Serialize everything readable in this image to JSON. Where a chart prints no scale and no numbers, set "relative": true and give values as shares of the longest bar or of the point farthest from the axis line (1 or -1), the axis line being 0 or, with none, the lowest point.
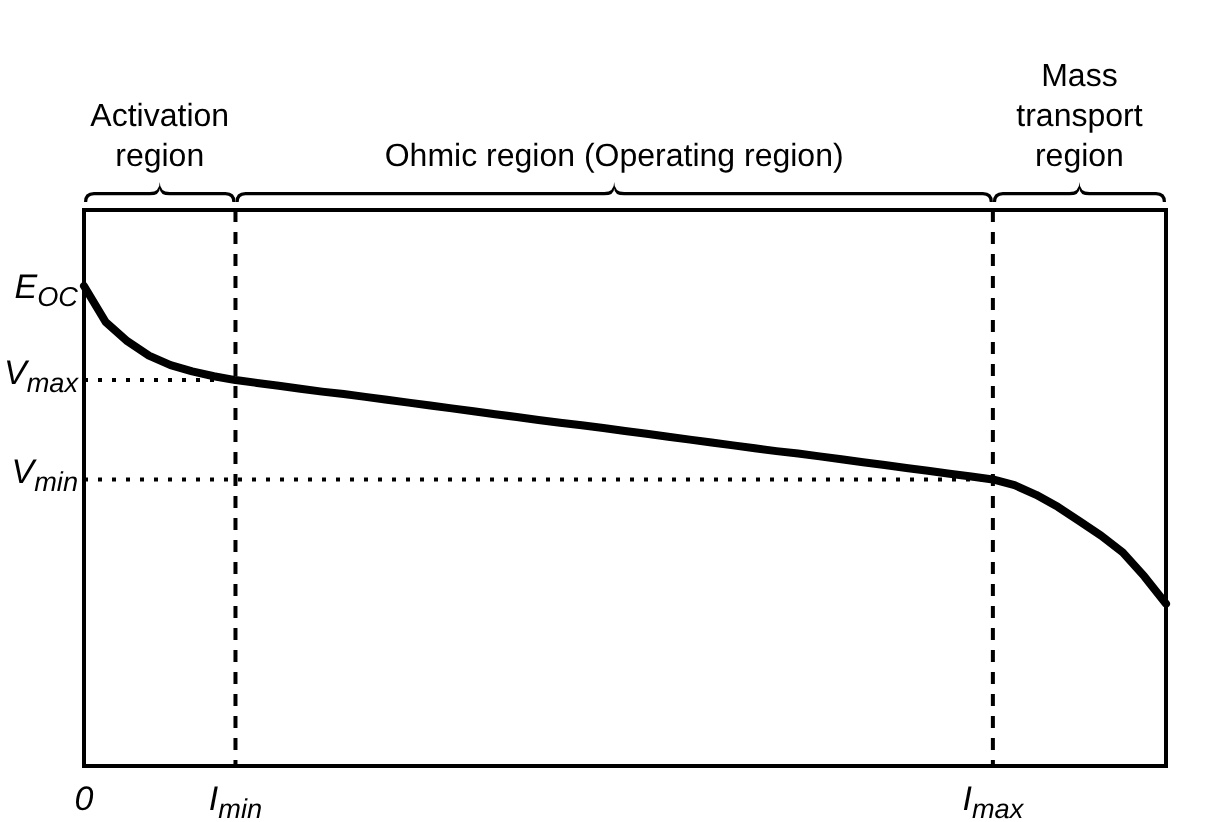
{
  "chart_data": {
    "type": "line",
    "relative": true,
    "categories": [
      "0",
      null,
      null,
      null,
      null,
      null,
      null,
      "I$_{min}$",
      null,
      null,
      null,
      null,
      null,
      null,
      null,
      null,
      null,
      null,
      null,
      null,
      null,
      null,
      null,
      null,
      null,
      null,
      null,
      null,
      null,
      null,
      null,
      null,
      null,
      null,
      null,
      null,
      null,
      null,
      null,
      null,
      null,
      null,
      "I$_{max}$",
      null,
      null,
      null,
      null,
      null,
      null,
      null,
      null
    ],
    "series": [
      {
        "color": "#000000",
        "values": [
          1.0,
          0.925,
          0.885,
          0.855,
          0.835,
          0.822,
          0.812,
          0.804,
          0.798,
          0.792,
          0.786,
          0.78,
          0.775,
          0.769,
          0.763,
          0.757,
          0.751,
          0.745,
          0.739,
          0.733,
          0.727,
          0.721,
          0.715,
          0.71,
          0.704,
          0.698,
          0.692,
          0.686,
          0.68,
          0.674,
          0.668,
          0.662,
          0.656,
          0.651,
          0.645,
          0.639,
          0.633,
          0.627,
          0.621,
          0.615,
          0.609,
          0.603,
          0.597,
          0.585,
          0.565,
          0.54,
          0.51,
          0.48,
          0.445,
          0.395,
          0.338
        ]
      }
    ],
    "ref_lines": [
      {
        "axis": "x",
        "value": "I$_{min}$",
        "line_style": "dashed"
      },
      {
        "axis": "x",
        "value": "I$_{max}$",
        "line_style": "dashed"
      },
      {
        "axis": "y",
        "value": 0.804,
        "label": "V$_{max}$",
        "line_style": "dotted"
      },
      {
        "axis": "y",
        "value": 0.597,
        "label": "V$_{min}$",
        "line_style": "dotted"
      }
    ],
    "annotations": [
      "E$_{OC}$",
      "Activation region",
      "Ohmic region (Operating region)",
      "Mass transport region"
    ]
  }
}
